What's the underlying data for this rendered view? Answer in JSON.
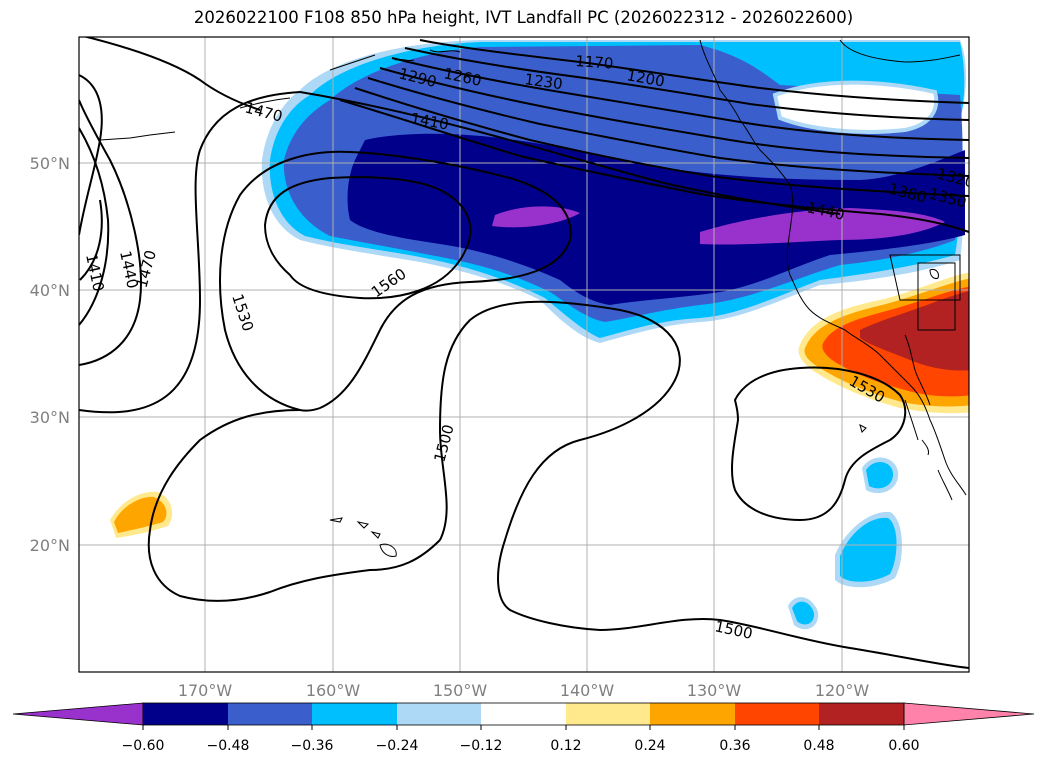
{
  "title": "2026022100 F108 850 hPa height, IVT Landfall PC (2026022312 - 2026022600)",
  "map": {
    "lat_labels": [
      "50°N",
      "40°N",
      "30°N",
      "20°N"
    ],
    "lon_labels": [
      "170°W",
      "160°W",
      "150°W",
      "140°W",
      "130°W",
      "120°W"
    ],
    "contour_labels": [
      "1170",
      "1200",
      "1230",
      "1260",
      "1290",
      "1410",
      "1470",
      "1410",
      "1440",
      "1470",
      "1530",
      "1560",
      "1500",
      "1500",
      "1440",
      "1380",
      "1350",
      "1320",
      "1530"
    ]
  },
  "colorbar": {
    "ticks": [
      "−0.60",
      "−0.48",
      "−0.36",
      "−0.24",
      "−0.12",
      "0.12",
      "0.24",
      "0.36",
      "0.48",
      "0.60"
    ],
    "colors": [
      "#9932cc",
      "#00008b",
      "#3a5fcd",
      "#00bfff",
      "#add8f6",
      "#ffffff",
      "#ffe98c",
      "#ffa500",
      "#ff4500",
      "#b22222",
      "#ff82ab"
    ]
  }
}
